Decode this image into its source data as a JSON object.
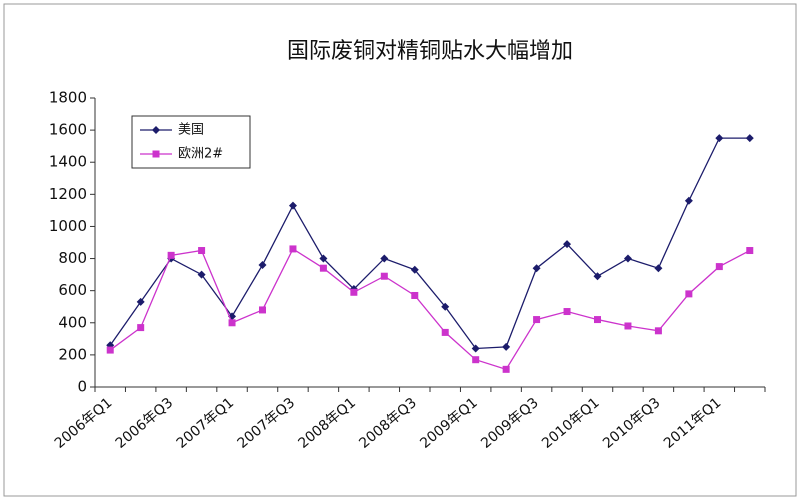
{
  "chart_data": {
    "type": "line",
    "title": "国际废铜对精铜贴水大幅增加",
    "categories": [
      "2006年Q1",
      null,
      "2006年Q3",
      null,
      "2007年Q1",
      null,
      "2007年Q3",
      null,
      "2008年Q1",
      null,
      "2008年Q3",
      null,
      "2009年Q1",
      null,
      "2009年Q3",
      null,
      "2010年Q1",
      null,
      "2010年Q3",
      null,
      "2011年Q1",
      null
    ],
    "series": [
      {
        "name": "美国",
        "color": "#1c1c6b",
        "marker": "diamond",
        "values": [
          260,
          530,
          800,
          700,
          440,
          760,
          1130,
          800,
          610,
          800,
          730,
          500,
          240,
          250,
          740,
          890,
          690,
          800,
          740,
          1160,
          1550,
          1550
        ]
      },
      {
        "name": "欧洲2#",
        "color": "#cc33cc",
        "marker": "square",
        "values": [
          230,
          370,
          820,
          850,
          400,
          480,
          860,
          740,
          590,
          690,
          570,
          340,
          170,
          110,
          420,
          470,
          420,
          380,
          350,
          580,
          750,
          850
        ]
      }
    ],
    "ylim": [
      0,
      1800
    ],
    "yticks": [
      0,
      200,
      400,
      600,
      800,
      1000,
      1200,
      1400,
      1600,
      1800
    ],
    "grid": false,
    "legend": "top-left"
  }
}
